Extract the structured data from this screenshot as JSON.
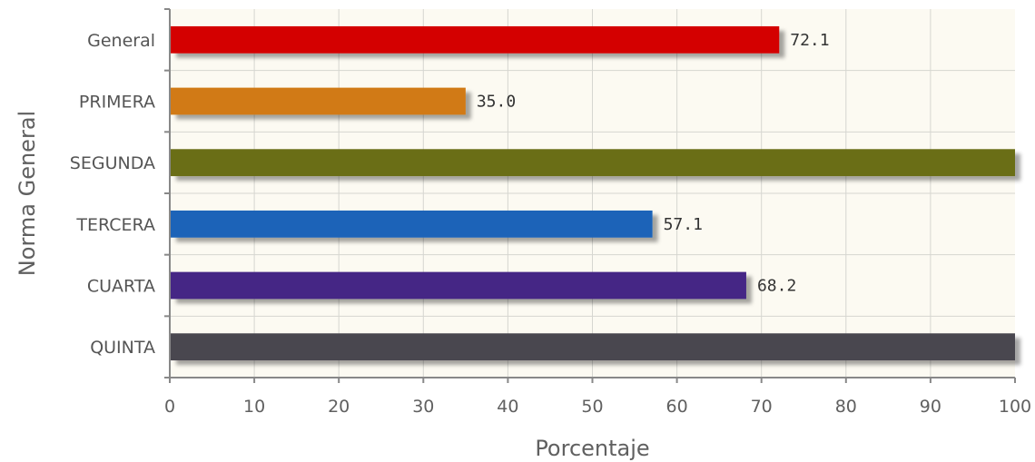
{
  "chart_data": {
    "type": "bar",
    "orientation": "horizontal",
    "categories": [
      "General",
      "PRIMERA",
      "SEGUNDA",
      "TERCERA",
      "CUARTA",
      "QUINTA"
    ],
    "values": [
      72.1,
      35.0,
      100,
      57.1,
      68.2,
      100
    ],
    "data_labels": [
      "72.1",
      "35.0",
      "",
      "57.1",
      "68.2",
      ""
    ],
    "colors": [
      "#d40000",
      "#d17a12",
      "#6b6e12",
      "#1a63b8",
      "#452585",
      "#4a4650"
    ],
    "xlabel": "Porcentaje",
    "ylabel": "Norma General",
    "xlim": [
      0,
      100
    ],
    "xticks": [
      "0",
      "10",
      "20",
      "30",
      "40",
      "50",
      "60",
      "70",
      "80",
      "90",
      "100"
    ],
    "grid": true,
    "plot_background": "#fcfaf2"
  }
}
